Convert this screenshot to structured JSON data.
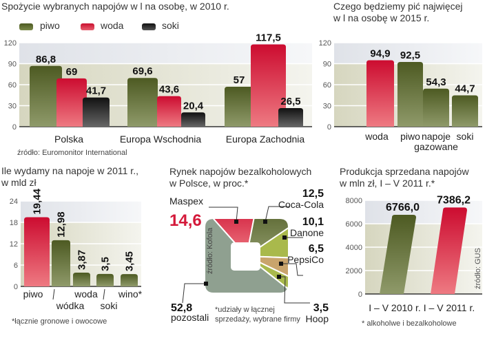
{
  "colors": {
    "green": "#5b6a2c",
    "red": "#d4193a",
    "black": "#222222",
    "lightgreen": "#a9b94c",
    "tan": "#c9a46c",
    "grey": "#8fa090"
  },
  "chart_data": [
    {
      "type": "bar",
      "title": "Spożycie wybranych napojów w l na osobę, w 2010 r.",
      "categories": [
        "Polska",
        "Europa Wschodnia",
        "Europa Zachodnia"
      ],
      "series": [
        {
          "name": "piwo",
          "values": [
            86.8,
            69.6,
            57
          ],
          "labels": [
            "86,8",
            "69,6",
            "57"
          ],
          "color": "green"
        },
        {
          "name": "woda",
          "values": [
            69,
            43.6,
            117.5
          ],
          "labels": [
            "69",
            "43,6",
            "117,5"
          ],
          "color": "red"
        },
        {
          "name": "soki",
          "values": [
            41.7,
            20.4,
            26.5
          ],
          "labels": [
            "41,7",
            "20,4",
            "26,5"
          ],
          "color": "black"
        }
      ],
      "yticks": [
        "0",
        "30",
        "60",
        "90",
        "120"
      ],
      "ylim": [
        0,
        120
      ],
      "source": "źródło: Euromonitor International"
    },
    {
      "type": "bar",
      "title": "Czego będziemy pić najwięcej",
      "subtitle": "w l na osobę w 2015 r.",
      "categories": [
        "woda",
        "piwo",
        "napoje gazowane",
        "soki"
      ],
      "category_lines": [
        [
          "woda"
        ],
        [
          "piwo"
        ],
        [
          "napoje",
          "gazowane"
        ],
        [
          "soki"
        ]
      ],
      "values": [
        94.9,
        92.5,
        54.3,
        44.7
      ],
      "labels": [
        "94,9",
        "92,5",
        "54,3",
        "44,7"
      ],
      "colors": [
        "red",
        "green",
        "green",
        "green"
      ],
      "yticks": [
        "0",
        "30",
        "60",
        "90",
        "120"
      ],
      "ylim": [
        0,
        120
      ]
    },
    {
      "type": "bar",
      "title": "Ile wydamy na napoje w 2011 r.,",
      "subtitle": "w mld zł",
      "categories": [
        "piwo",
        "wódka",
        "woda",
        "soki",
        "wino*"
      ],
      "values": [
        19.44,
        12.98,
        3.87,
        3.5,
        3.45
      ],
      "labels": [
        "19,44",
        "12,98",
        "3,87",
        "3,5",
        "3,45"
      ],
      "colors": [
        "red",
        "green",
        "green",
        "green",
        "green"
      ],
      "yticks": [
        "0",
        "6",
        "12",
        "18",
        "24"
      ],
      "ylim": [
        0,
        24
      ],
      "footnote": "*łącznie gronowe i owocowe"
    },
    {
      "type": "pie",
      "title": "Rynek napojów bezalkoholowych",
      "subtitle": "w Polsce, w proc.*",
      "slices": [
        {
          "name": "Maspex",
          "value": 14.6,
          "label": "14,6",
          "color": "red"
        },
        {
          "name": "Coca-Cola",
          "value": 12.5,
          "label": "12,5",
          "color": "green"
        },
        {
          "name": "Danone",
          "value": 10.1,
          "label": "10,1",
          "color": "lightgreen"
        },
        {
          "name": "PepsiCo",
          "value": 6.5,
          "label": "6,5",
          "color": "tan"
        },
        {
          "name": "Hoop",
          "value": 3.5,
          "label": "3,5",
          "color": "lightgreen"
        },
        {
          "name": "pozostali",
          "value": 52.8,
          "label": "52,8",
          "color": "grey"
        }
      ],
      "source": "źródło: Kofola",
      "footnote_lines": [
        "*udziały w łącznej",
        "sprzedaży, wybrane firmy"
      ]
    },
    {
      "type": "bar",
      "title": "Produkcja sprzedana napojów",
      "subtitle": "w mln zł,  I – V 2011 r.*",
      "categories": [
        "I – V 2010 r.",
        "I – V 2011 r."
      ],
      "values": [
        6766.0,
        7386.2
      ],
      "labels": [
        "6766,0",
        "7386,2"
      ],
      "colors": [
        "green",
        "red"
      ],
      "yticks": [
        "0",
        "2000",
        "4000",
        "6000",
        "8000"
      ],
      "ylim": [
        0,
        8000
      ],
      "source": "źródło: GUS",
      "footnote": "* alkoholwe i bezalkoholowe"
    }
  ]
}
